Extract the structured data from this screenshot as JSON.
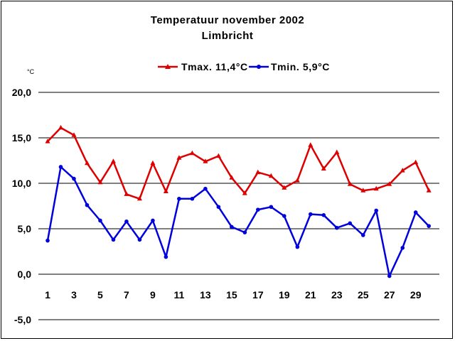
{
  "chart_data": {
    "type": "line",
    "title": "Temperatuur november 2002",
    "subtitle": "Limbricht",
    "ylabel": "°C",
    "xlabel": "",
    "ylim": [
      -5,
      20
    ],
    "yticks": [
      "20,0",
      "15,0",
      "10,0",
      "5,0",
      "0,0",
      "-5,0"
    ],
    "ytick_values": [
      20,
      15,
      10,
      5,
      0,
      -5
    ],
    "xlim": [
      1,
      30
    ],
    "xticks": [
      "1",
      "3",
      "5",
      "7",
      "9",
      "11",
      "13",
      "15",
      "17",
      "19",
      "21",
      "23",
      "25",
      "27",
      "29"
    ],
    "x": [
      1,
      2,
      3,
      4,
      5,
      6,
      7,
      8,
      9,
      10,
      11,
      12,
      13,
      14,
      15,
      16,
      17,
      18,
      19,
      20,
      21,
      22,
      23,
      24,
      25,
      26,
      27,
      28,
      29,
      30
    ],
    "grid": "horizontal",
    "legend_position": "top-right",
    "series": [
      {
        "name": "Tmax. 11,4°C",
        "color": "#dd0000",
        "marker": "triangle",
        "values": [
          14.6,
          16.1,
          15.3,
          12.2,
          10.1,
          12.4,
          8.8,
          8.3,
          12.2,
          9.1,
          12.8,
          13.3,
          12.4,
          13.0,
          10.6,
          8.9,
          11.2,
          10.8,
          9.5,
          10.3,
          14.2,
          11.6,
          13.4,
          9.9,
          9.2,
          9.4,
          9.9,
          11.4,
          12.3,
          9.2
        ]
      },
      {
        "name": "Tmin. 5,9°C",
        "color": "#0000dd",
        "marker": "circle",
        "values": [
          3.7,
          11.8,
          10.5,
          7.6,
          5.9,
          3.8,
          5.8,
          3.8,
          5.9,
          1.9,
          8.3,
          8.3,
          9.4,
          7.4,
          5.2,
          4.6,
          7.1,
          7.4,
          6.4,
          3.0,
          6.6,
          6.5,
          5.1,
          5.6,
          4.3,
          7.0,
          -0.2,
          2.9,
          6.8,
          5.3
        ]
      }
    ]
  }
}
